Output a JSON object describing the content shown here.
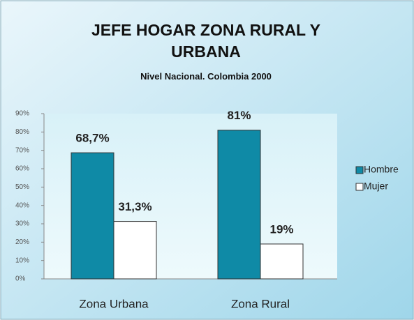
{
  "chart_data": {
    "type": "bar",
    "title": "JEFE HOGAR ZONA RURAL Y URBANA",
    "subtitle": "Nivel Nacional.  Colombia 2000",
    "categories": [
      "Zona Urbana",
      "Zona Rural"
    ],
    "series": [
      {
        "name": "Hombre",
        "color": "#0f8aa6",
        "values": [
          68.7,
          81
        ],
        "value_labels": [
          "68,7%",
          "81%"
        ]
      },
      {
        "name": "Mujer",
        "color": "#ffffff",
        "values": [
          31.3,
          19
        ],
        "value_labels": [
          "31,3%",
          "19%"
        ]
      }
    ],
    "ylim": [
      0,
      90
    ],
    "yticks": [
      {
        "value": 0,
        "label": "0%"
      },
      {
        "value": 10,
        "label": "10%"
      },
      {
        "value": 20,
        "label": "20%"
      },
      {
        "value": 30,
        "label": "30%"
      },
      {
        "value": 40,
        "label": "40%"
      },
      {
        "value": 50,
        "label": "50%"
      },
      {
        "value": 60,
        "label": "60%"
      },
      {
        "value": 70,
        "label": "70%"
      },
      {
        "value": 80,
        "label": "80%"
      },
      {
        "value": 90,
        "label": "90%"
      }
    ],
    "grid": false,
    "legend": "right"
  }
}
